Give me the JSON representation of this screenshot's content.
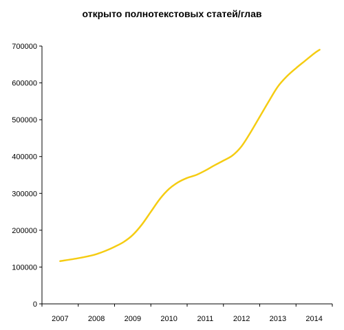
{
  "chart_data": {
    "type": "line",
    "title": "открыто полнотекстовых статей/глав",
    "xlabel": "",
    "ylabel": "",
    "categories": [
      "2007",
      "2008",
      "2009",
      "2010",
      "2011",
      "2012",
      "2013",
      "2014"
    ],
    "y_ticks": [
      "0",
      "100000",
      "200000",
      "300000",
      "400000",
      "500000",
      "600000",
      "700000"
    ],
    "ylim": [
      0,
      700000
    ],
    "grid": false,
    "legend": "none",
    "line_color": "#F5CC12",
    "series": [
      {
        "x": [
          2007.0,
          2007.5,
          2007.85,
          2008.0,
          2008.25,
          2008.5,
          2008.75,
          2009.0,
          2009.25,
          2009.5,
          2009.75,
          2010.0,
          2010.25,
          2010.5,
          2010.75,
          2011.0,
          2011.25,
          2011.5,
          2011.75,
          2012.0,
          2012.25,
          2012.5,
          2012.75,
          2013.0,
          2013.25,
          2013.5,
          2013.75,
          2014.0,
          2014.15
        ],
        "values": [
          116000,
          124000,
          131000,
          135000,
          144000,
          155000,
          168000,
          187000,
          215000,
          250000,
          285000,
          312000,
          330000,
          342000,
          350000,
          362000,
          376000,
          389000,
          403000,
          428000,
          466000,
          508000,
          550000,
          590000,
          618000,
          640000,
          660000,
          680000,
          690000
        ]
      }
    ]
  }
}
